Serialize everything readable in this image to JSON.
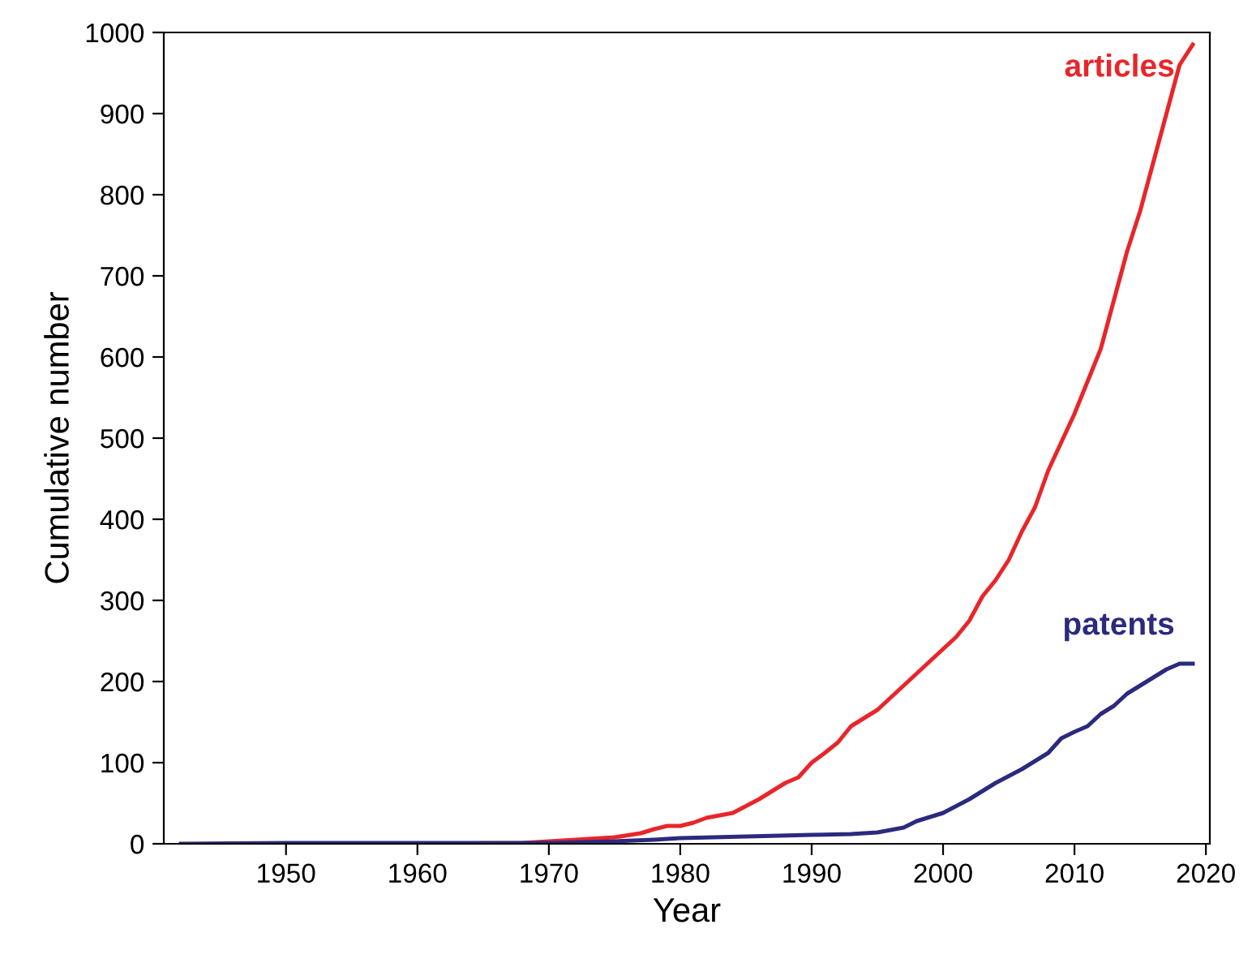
{
  "chart_data": {
    "type": "line",
    "xlabel": "Year",
    "ylabel": "Cumulative number",
    "xlim": [
      1940.7,
      2020.3
    ],
    "xticks": [
      1950,
      1960,
      1970,
      1980,
      1990,
      2000,
      2010,
      2020
    ],
    "ylim": [
      0,
      1000
    ],
    "yticks": [
      0,
      100,
      200,
      300,
      400,
      500,
      600,
      700,
      800,
      900,
      1000
    ],
    "grid": false,
    "legend": false,
    "series": [
      {
        "name": "articles",
        "color": "#e8262a",
        "x": [
          1950,
          1960,
          1968,
          1970,
          1972,
          1975,
          1977,
          1978,
          1979,
          1980,
          1981,
          1982,
          1984,
          1986,
          1987,
          1988,
          1989,
          1990,
          1991,
          1992,
          1993,
          1995,
          1997,
          1999,
          2001,
          2002,
          2003,
          2004,
          2005,
          2006,
          2007,
          2008,
          2010,
          2012,
          2013,
          2014,
          2015,
          2016,
          2017,
          2018,
          2019
        ],
        "values": [
          0,
          0,
          1,
          3,
          5,
          8,
          13,
          18,
          22,
          22,
          26,
          32,
          38,
          55,
          65,
          75,
          82,
          100,
          112,
          125,
          145,
          165,
          195,
          225,
          255,
          275,
          305,
          325,
          350,
          385,
          415,
          460,
          530,
          610,
          670,
          730,
          780,
          840,
          900,
          960,
          985
        ]
      },
      {
        "name": "patents",
        "color": "#2b2a7e",
        "x": [
          1942,
          1950,
          1960,
          1970,
          1975,
          1978,
          1980,
          1985,
          1990,
          1993,
          1995,
          1997,
          1998,
          2000,
          2002,
          2004,
          2006,
          2008,
          2009,
          2010,
          2011,
          2012,
          2013,
          2014,
          2016,
          2017,
          2018,
          2019
        ],
        "values": [
          0,
          1,
          1,
          1,
          3,
          5,
          7,
          9,
          11,
          12,
          14,
          20,
          28,
          38,
          55,
          75,
          92,
          112,
          130,
          138,
          145,
          160,
          170,
          185,
          205,
          215,
          222,
          222
        ]
      }
    ]
  }
}
